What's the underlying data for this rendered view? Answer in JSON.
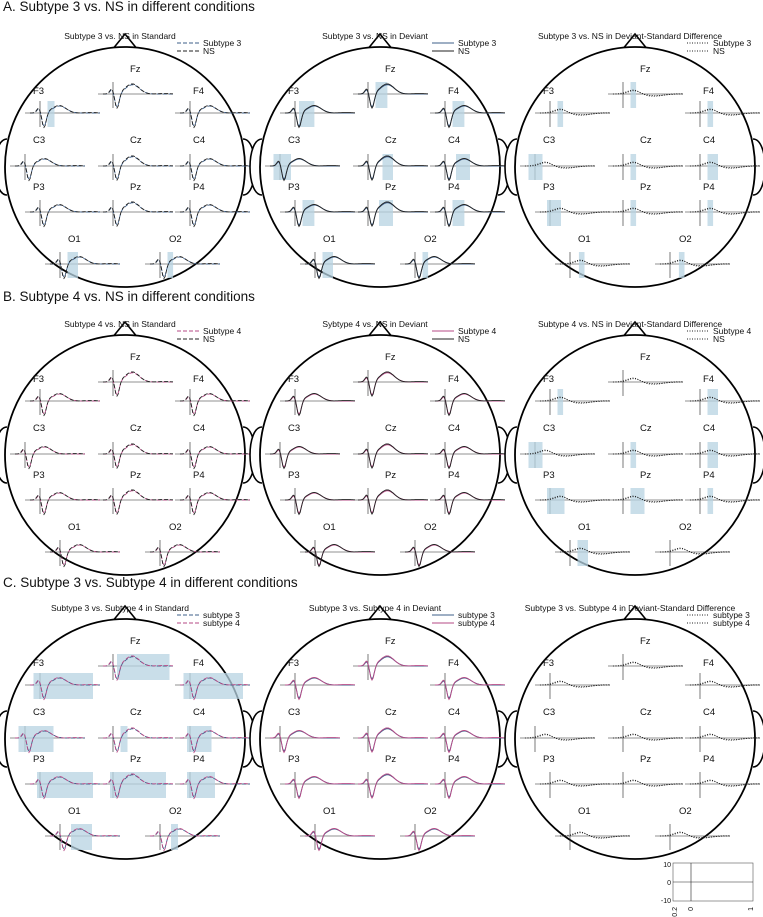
{
  "colors": {
    "blue": "#3e5f8a",
    "pink": "#b64a86",
    "black": "#222222",
    "shade": "#b7d3e2"
  },
  "sections": [
    {
      "title": "A. Subtype 3 vs. NS in different conditions",
      "panels": [
        {
          "title": "Subtype 3 vs. NS in Standard",
          "legend": [
            "Subtype 3",
            "NS"
          ],
          "style": "dashed",
          "c1": "blue",
          "c2": "black",
          "shade": {
            "F3": [
              [
                0.25,
                0.35
              ]
            ],
            "O1": [
              [
                0.25,
                0.4
              ]
            ],
            "O2": [
              [
                0.25,
                0.33
              ]
            ]
          }
        },
        {
          "title": "Subtype 3 vs. NS in Deviant",
          "legend": [
            "Subtype 3",
            "NS"
          ],
          "style": "solid",
          "c1": "blue",
          "c2": "black",
          "shade": {
            "F3": [
              [
                0.2,
                0.42
              ]
            ],
            "Fz": [
              [
                0.25,
                0.42
              ]
            ],
            "F4": [
              [
                0.25,
                0.42
              ]
            ],
            "C3": [
              [
                0.05,
                0.3
              ]
            ],
            "Cz": [
              [
                0.35,
                0.5
              ]
            ],
            "C4": [
              [
                0.3,
                0.5
              ]
            ],
            "P3": [
              [
                0.25,
                0.42
              ]
            ],
            "Pz": [
              [
                0.3,
                0.5
              ]
            ],
            "P4": [
              [
                0.25,
                0.42
              ]
            ],
            "O1": [
              [
                0.25,
                0.4
              ]
            ],
            "O2": [
              [
                0.25,
                0.33
              ]
            ]
          }
        },
        {
          "title": "Subtype 3 vs. NS in Deviant-Standard Difference",
          "legend": [
            "Subtype 3",
            "NS"
          ],
          "style": "dotted",
          "c1": "black",
          "c2": "black",
          "shade": {
            "F3": [
              [
                0.25,
                0.33
              ]
            ],
            "Fz": [
              [
                0.25,
                0.33
              ]
            ],
            "F4": [
              [
                0.25,
                0.33
              ]
            ],
            "C3": [
              [
                0.05,
                0.25
              ]
            ],
            "Cz": [
              [
                0.25,
                0.33
              ]
            ],
            "C4": [
              [
                0.25,
                0.4
              ]
            ],
            "P3": [
              [
                0.1,
                0.3
              ]
            ],
            "Pz": [
              [
                0.25,
                0.33
              ]
            ],
            "P4": [
              [
                0.25,
                0.33
              ]
            ],
            "O1": [
              [
                0.27,
                0.35
              ]
            ],
            "O2": [
              [
                0.27,
                0.35
              ]
            ]
          }
        }
      ]
    },
    {
      "title": "B. Subtype 4 vs. NS in different conditions",
      "panels": [
        {
          "title": "Subtype 4 vs. NS in Standard",
          "legend": [
            "Subtype 4",
            "NS"
          ],
          "style": "dashed",
          "c1": "pink",
          "c2": "black",
          "shade": {}
        },
        {
          "title": "Sybtype 4 vs. NS in Deviant",
          "legend": [
            "Subtype 4",
            "NS"
          ],
          "style": "solid",
          "c1": "pink",
          "c2": "black",
          "shade": {}
        },
        {
          "title": "Subtype 4 vs. NS in Deviant-Standard Difference",
          "legend": [
            "Subtype 4",
            "NS"
          ],
          "style": "dotted",
          "c1": "black",
          "c2": "black",
          "shade": {
            "F3": [
              [
                0.25,
                0.33
              ]
            ],
            "F4": [
              [
                0.25,
                0.4
              ]
            ],
            "C3": [
              [
                0.05,
                0.25
              ]
            ],
            "Cz": [
              [
                0.25,
                0.33
              ]
            ],
            "C4": [
              [
                0.25,
                0.4
              ]
            ],
            "P3": [
              [
                0.1,
                0.35
              ]
            ],
            "Pz": [
              [
                0.25,
                0.45
              ]
            ],
            "P4": [
              [
                0.25,
                0.33
              ]
            ],
            "O1": [
              [
                0.25,
                0.4
              ]
            ]
          }
        }
      ]
    },
    {
      "title": "C. Subtype 3 vs. Subtype 4 in different conditions",
      "panels": [
        {
          "title": "Subtype 3 vs. Subtype 4 in Standard",
          "legend": [
            "subtype 3",
            "subtype 4"
          ],
          "style": "dashed",
          "c1": "blue",
          "c2": "pink",
          "shade": {
            "F3": [
              [
                0.05,
                0.9
              ]
            ],
            "Fz": [
              [
                0.2,
                0.95
              ]
            ],
            "F4": [
              [
                0.05,
                0.9
              ]
            ],
            "C3": [
              [
                0.05,
                0.55
              ]
            ],
            "Cz": [
              [
                0.25,
                0.35
              ]
            ],
            "C4": [
              [
                0.1,
                0.45
              ]
            ],
            "P3": [
              [
                0.1,
                0.9
              ]
            ],
            "Pz": [
              [
                0.1,
                0.9
              ]
            ],
            "P4": [
              [
                0.1,
                0.5
              ]
            ],
            "O1": [
              [
                0.3,
                0.6
              ]
            ],
            "O2": [
              [
                0.3,
                0.4
              ]
            ]
          }
        },
        {
          "title": "Subtype 3 vs. Subtype 4 in Deviant",
          "legend": [
            "subtype 3",
            "subtype 4"
          ],
          "style": "solid",
          "c1": "blue",
          "c2": "pink",
          "shade": {}
        },
        {
          "title": "Subtype 3 vs. Subtype 4 in Deviant-Standard Difference",
          "legend": [
            "subtype 3",
            "subtype 4"
          ],
          "style": "dotted",
          "c1": "black",
          "c2": "black",
          "shade": {}
        }
      ]
    }
  ],
  "electrodes": [
    "Fz",
    "F3",
    "F4",
    "Cz",
    "C3",
    "C4",
    "Pz",
    "P3",
    "P4",
    "O1",
    "O2"
  ],
  "scale": {
    "y_ticks": [
      "10",
      "0",
      "-10"
    ],
    "x_ticks": [
      "-0.2",
      "0",
      "1"
    ]
  }
}
